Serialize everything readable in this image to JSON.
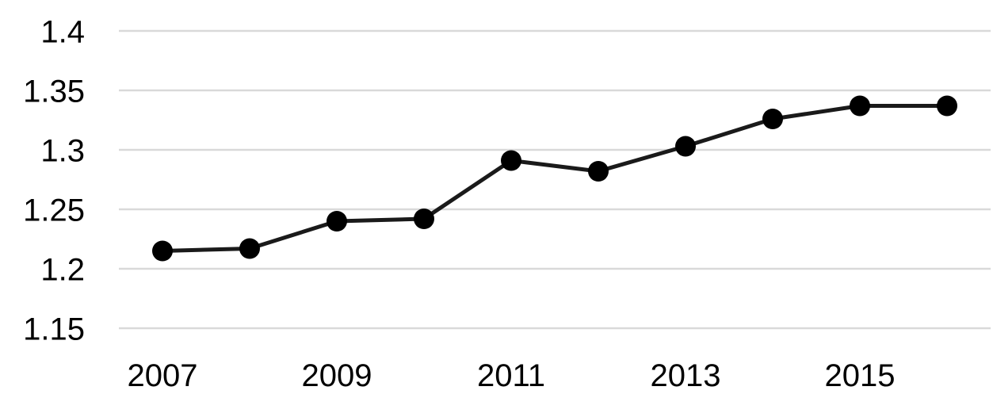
{
  "chart_data": {
    "type": "line",
    "title": "",
    "xlabel": "",
    "ylabel": "",
    "legend": "none",
    "grid": "horizontal",
    "marker": "filled-circle",
    "x": [
      2007,
      2008,
      2009,
      2010,
      2011,
      2012,
      2013,
      2014,
      2015,
      2016
    ],
    "values": [
      1.215,
      1.217,
      1.24,
      1.242,
      1.291,
      1.282,
      1.303,
      1.326,
      1.337,
      1.337
    ],
    "ylim": [
      1.15,
      1.4
    ],
    "y_tick_step": 0.05,
    "y_tick_labels": [
      "1.15",
      "1.2",
      "1.25",
      "1.3",
      "1.35",
      "1.4"
    ],
    "x_tick_labels": [
      "2007",
      "2009",
      "2011",
      "2013",
      "2015"
    ],
    "x_tick_indices": [
      0,
      2,
      4,
      6,
      8
    ],
    "colors": {
      "line": "#1a1a1a",
      "marker": "#000000",
      "gridline": "#d9d9d9",
      "tick_text": "#000000",
      "background": "#ffffff"
    }
  }
}
